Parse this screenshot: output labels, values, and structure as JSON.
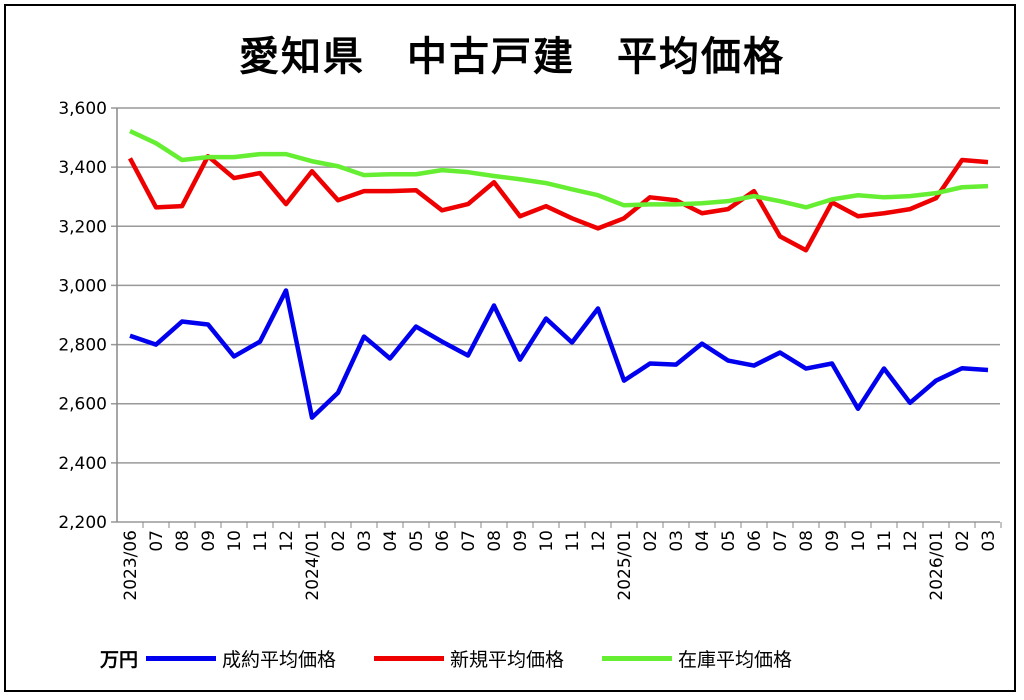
{
  "chart_data": {
    "type": "line",
    "title": "愛知県　中古戸建　平均価格",
    "unit_label": "万円",
    "ylim": [
      2200,
      3600
    ],
    "yticks": [
      2200,
      2400,
      2600,
      2800,
      3000,
      3200,
      3400,
      3600
    ],
    "ytick_labels": [
      "2,200",
      "2,400",
      "2,600",
      "2,800",
      "3,000",
      "3,200",
      "3,400",
      "3,600"
    ],
    "grid": true,
    "legend_position": "bottom",
    "categories": [
      "2023/06",
      "07",
      "08",
      "09",
      "10",
      "11",
      "12",
      "2024/01",
      "02",
      "03",
      "04",
      "05",
      "06",
      "07",
      "08",
      "09",
      "10",
      "11",
      "12",
      "2025/01",
      "02",
      "03",
      "04",
      "05",
      "06",
      "07",
      "08",
      "09",
      "10",
      "11",
      "12",
      "2026/01",
      "02",
      "03"
    ],
    "series": [
      {
        "name": "成約平均価格",
        "color": "#0000ee",
        "values": [
          2830,
          2800,
          2878,
          2868,
          2760,
          2810,
          2983,
          2553,
          2637,
          2827,
          2753,
          2861,
          2810,
          2763,
          2932,
          2749,
          2888,
          2807,
          2922,
          2678,
          2736,
          2732,
          2803,
          2746,
          2729,
          2773,
          2719,
          2736,
          2583,
          2719,
          2603,
          2678,
          2720,
          2714
        ]
      },
      {
        "name": "新規平均価格",
        "color": "#ee0000",
        "values": [
          3430,
          3264,
          3268,
          3437,
          3363,
          3380,
          3275,
          3386,
          3288,
          3319,
          3319,
          3322,
          3254,
          3275,
          3349,
          3234,
          3268,
          3227,
          3193,
          3227,
          3298,
          3288,
          3244,
          3258,
          3319,
          3166,
          3119,
          3281,
          3234,
          3244,
          3258,
          3295,
          3424,
          3417
        ]
      },
      {
        "name": "在庫平均価格",
        "color": "#66ee33",
        "values": [
          3522,
          3481,
          3424,
          3434,
          3434,
          3444,
          3444,
          3420,
          3403,
          3373,
          3376,
          3376,
          3390,
          3383,
          3370,
          3359,
          3346,
          3325,
          3305,
          3271,
          3274,
          3274,
          3278,
          3285,
          3302,
          3285,
          3264,
          3291,
          3305,
          3298,
          3302,
          3312,
          3332,
          3336
        ]
      }
    ]
  }
}
